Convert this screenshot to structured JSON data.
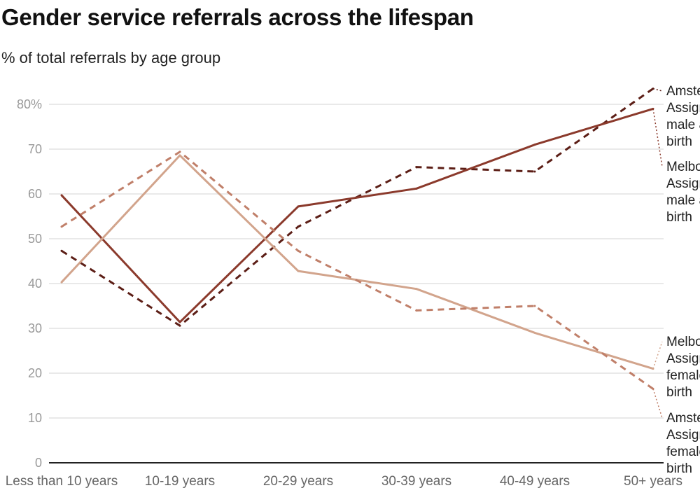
{
  "chart_data": {
    "type": "line",
    "title": "Gender service referrals across the lifespan",
    "subtitle": "% of total referrals by age group",
    "categories": [
      "Less than 10 years",
      "10-19 years",
      "20-29 years",
      "30-39 years",
      "40-49 years",
      "50+ years"
    ],
    "ylim": [
      0,
      80
    ],
    "yticks": [
      0,
      10,
      20,
      30,
      40,
      50,
      60,
      70,
      80
    ],
    "ytick_labels": [
      "0",
      "10",
      "20",
      "30",
      "40",
      "50",
      "60",
      "70",
      "80%"
    ],
    "grid": true,
    "legend": "direct labels right",
    "series": [
      {
        "name": "Amsterdam: Assigned male at birth",
        "label_lines": [
          "Amsterdam:",
          "Assigned",
          "male at",
          "birth"
        ],
        "values": [
          47.3,
          30.6,
          52.7,
          66.0,
          65.0,
          83.5
        ],
        "color": "#5c1e16",
        "dashed": true
      },
      {
        "name": "Melbourne: Assigned male at birth",
        "label_lines": [
          "Melbourne:",
          "Assigned",
          "male at",
          "birth"
        ],
        "values": [
          59.7,
          31.4,
          57.2,
          61.2,
          71.0,
          79.0
        ],
        "color": "#8b3a2c",
        "dashed": false
      },
      {
        "name": "Melbourne: Assigned female at birth",
        "label_lines": [
          "Melbourne:",
          "Assigned",
          "female at",
          "birth"
        ],
        "values": [
          40.3,
          68.6,
          42.8,
          38.8,
          29.0,
          21.0
        ],
        "color": "#d2a48c",
        "dashed": false
      },
      {
        "name": "Amsterdam: Assigned female at birth",
        "label_lines": [
          "Amsterdam:",
          "Assigned",
          "female at",
          "birth"
        ],
        "values": [
          52.7,
          69.4,
          47.3,
          34.0,
          35.0,
          16.5
        ],
        "color": "#c07f69",
        "dashed": true
      }
    ]
  }
}
